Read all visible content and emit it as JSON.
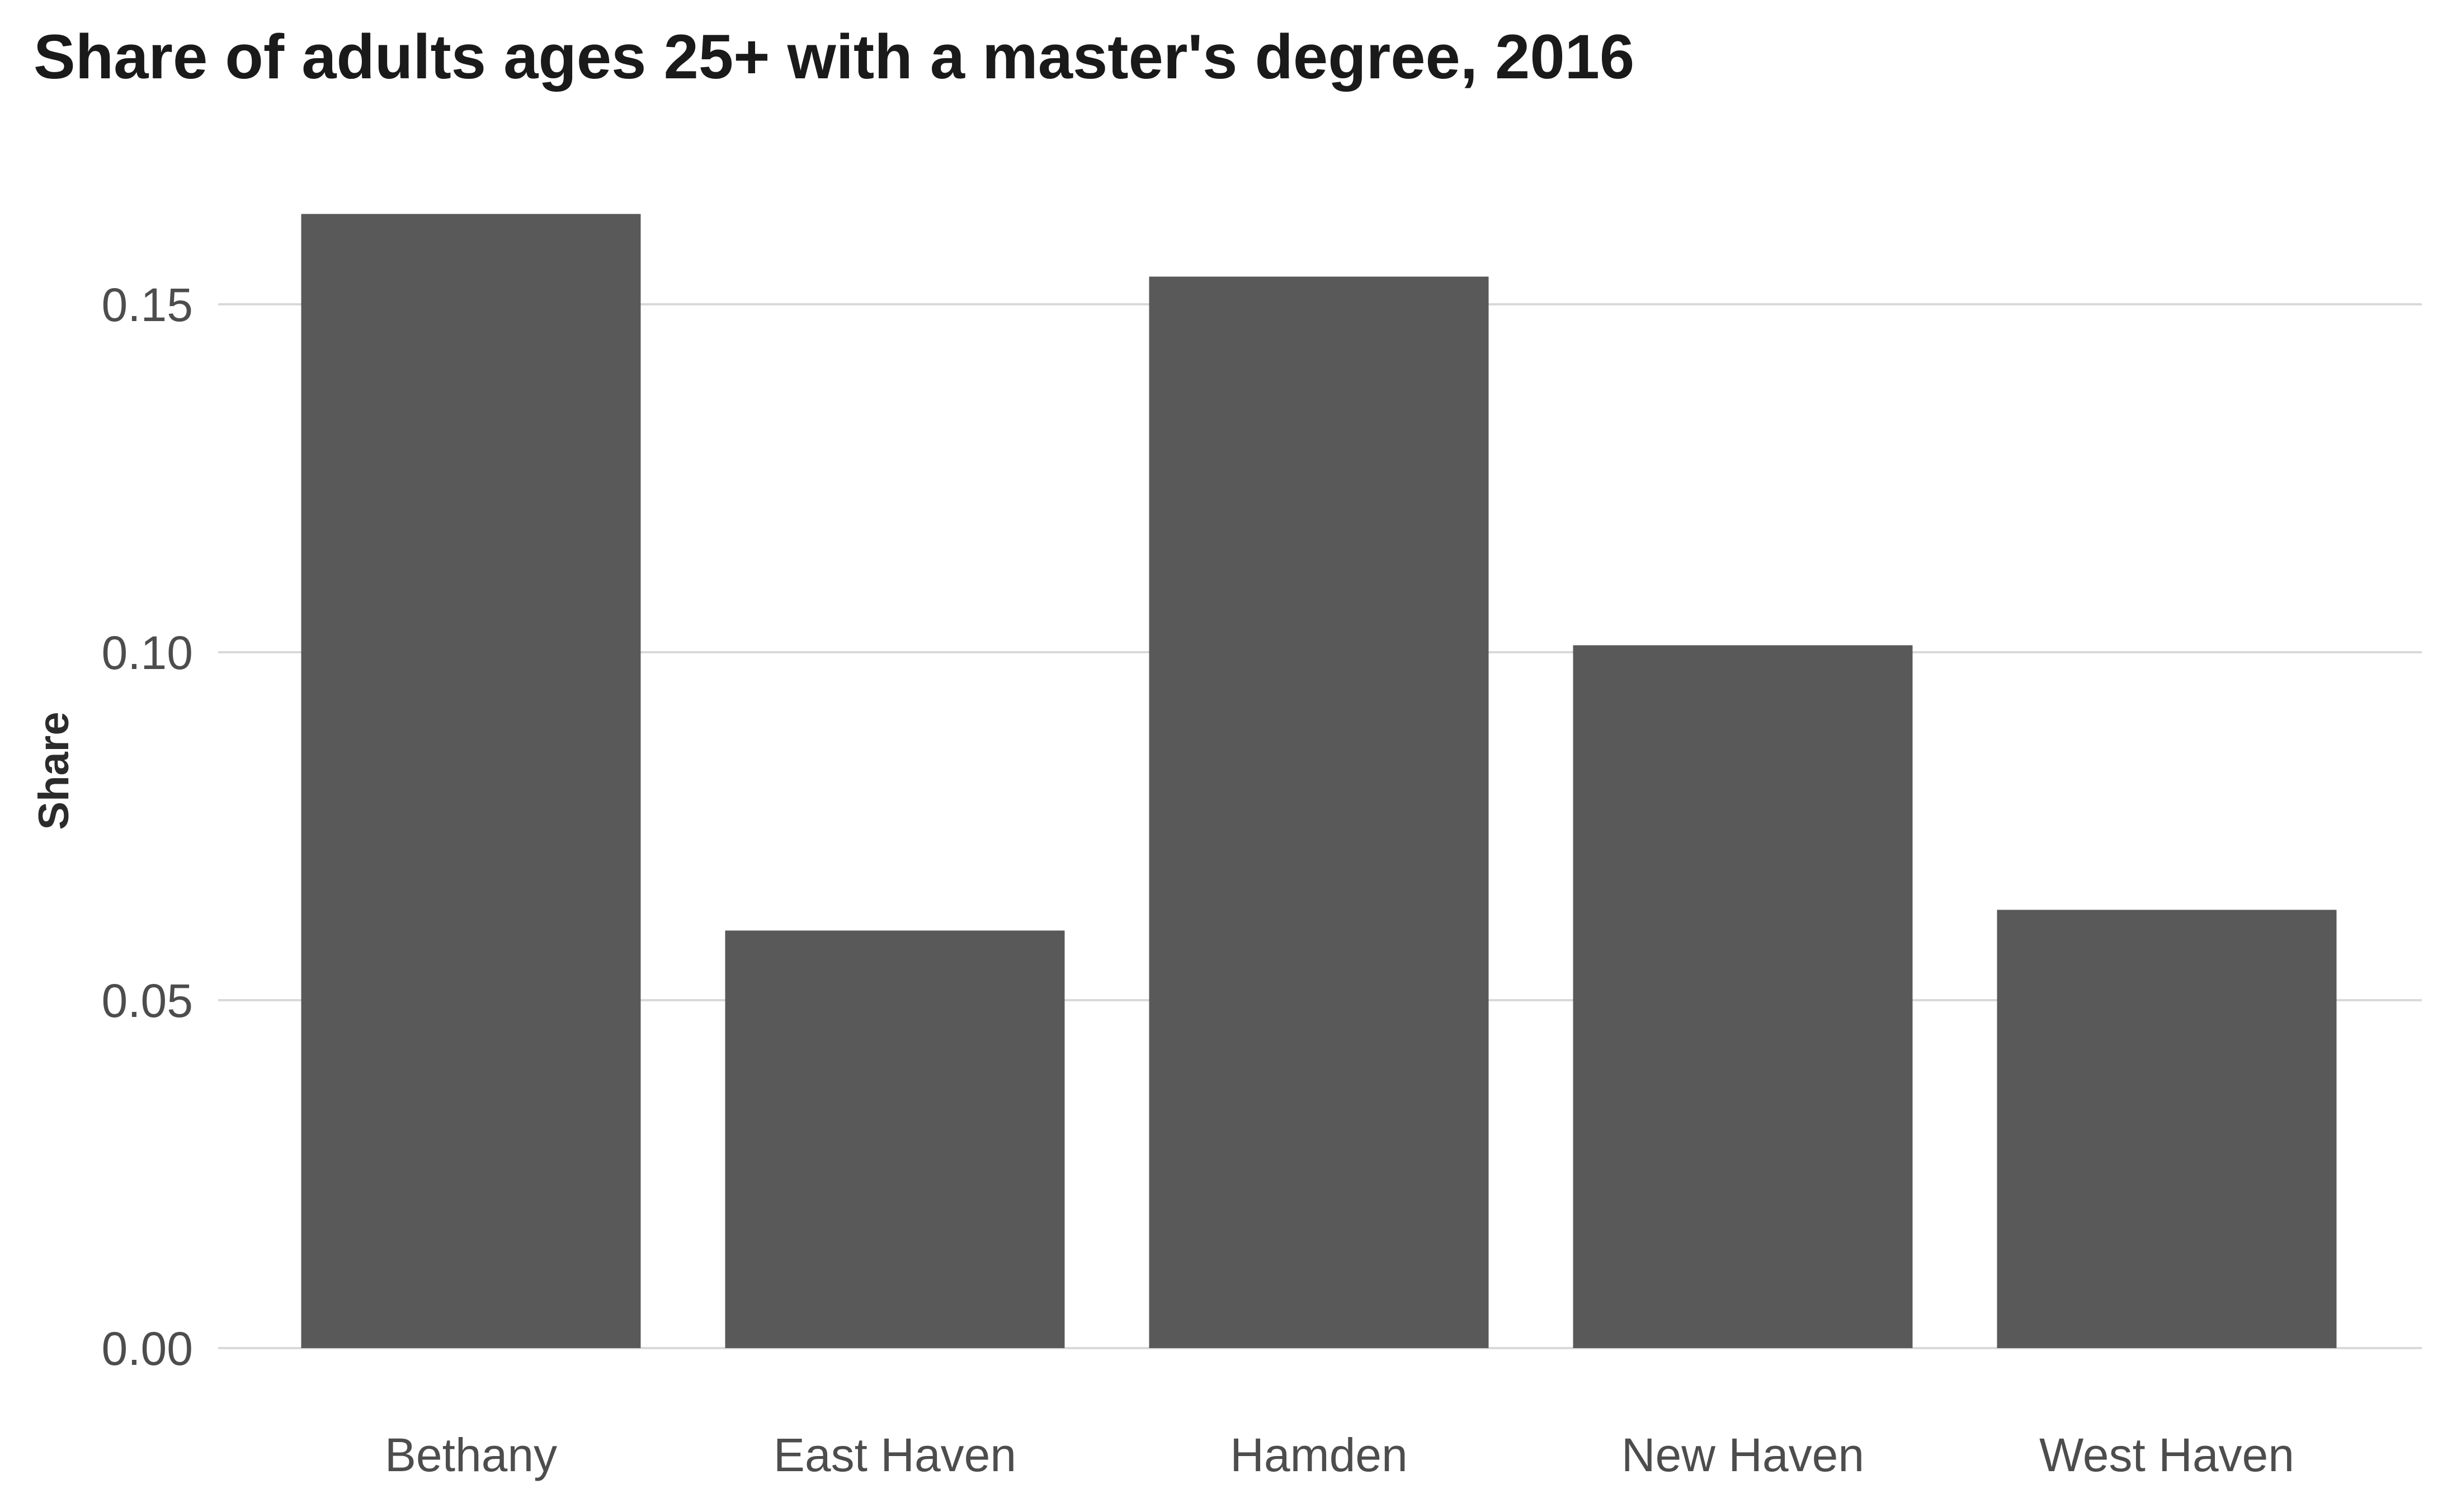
{
  "chart_data": {
    "type": "bar",
    "title": "Share of adults ages 25+ with a master's degree, 2016",
    "xlabel": "",
    "ylabel": "Share",
    "categories": [
      "Bethany",
      "East Haven",
      "Hamden",
      "New Haven",
      "West Haven"
    ],
    "values": [
      0.163,
      0.06,
      0.154,
      0.101,
      0.063
    ],
    "ylim": [
      0,
      0.166
    ],
    "y_ticks": [
      0.0,
      0.05,
      0.1,
      0.15
    ],
    "y_tick_labels": [
      "0.00",
      "0.05",
      "0.10",
      "0.15"
    ],
    "grid": "horizontal",
    "legend": "none",
    "bar_color": "#595959",
    "grid_color": "#d9d9d9"
  }
}
